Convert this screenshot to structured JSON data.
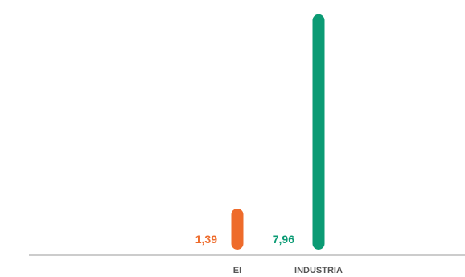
{
  "chart_data": {
    "type": "bar",
    "categories": [
      "EI",
      "INDUSTRIA"
    ],
    "values": [
      1.39,
      7.96
    ],
    "value_labels": [
      "1,39",
      "7,96"
    ],
    "colors": [
      "#EE6B2B",
      "#0B9B74"
    ],
    "ylim": [
      0,
      8.2
    ],
    "grid": false,
    "title": "",
    "xlabel": "",
    "ylabel": ""
  }
}
